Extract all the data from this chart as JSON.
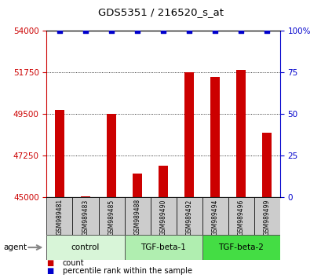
{
  "title": "GDS5351 / 216520_s_at",
  "samples": [
    "GSM989481",
    "GSM989483",
    "GSM989485",
    "GSM989488",
    "GSM989490",
    "GSM989492",
    "GSM989494",
    "GSM989496",
    "GSM989499"
  ],
  "counts": [
    49700,
    45050,
    49500,
    46300,
    46700,
    51750,
    51500,
    51900,
    48500
  ],
  "percentile": [
    100,
    100,
    100,
    100,
    100,
    100,
    100,
    100,
    100
  ],
  "groups": [
    {
      "label": "control",
      "indices": [
        0,
        1,
        2
      ],
      "color": "#d8f5d8"
    },
    {
      "label": "TGF-beta-1",
      "indices": [
        3,
        4,
        5
      ],
      "color": "#b0eeb0"
    },
    {
      "label": "TGF-beta-2",
      "indices": [
        6,
        7,
        8
      ],
      "color": "#44dd44"
    }
  ],
  "ylim_left": [
    45000,
    54000
  ],
  "yticks_left": [
    45000,
    47250,
    49500,
    51750,
    54000
  ],
  "ylim_right": [
    0,
    100
  ],
  "yticks_right": [
    0,
    25,
    50,
    75,
    100
  ],
  "bar_color": "#cc0000",
  "dot_color": "#0000cc",
  "bar_width": 0.35,
  "background_color": "#ffffff",
  "agent_label": "agent",
  "legend_count_label": "count",
  "legend_pct_label": "percentile rank within the sample"
}
